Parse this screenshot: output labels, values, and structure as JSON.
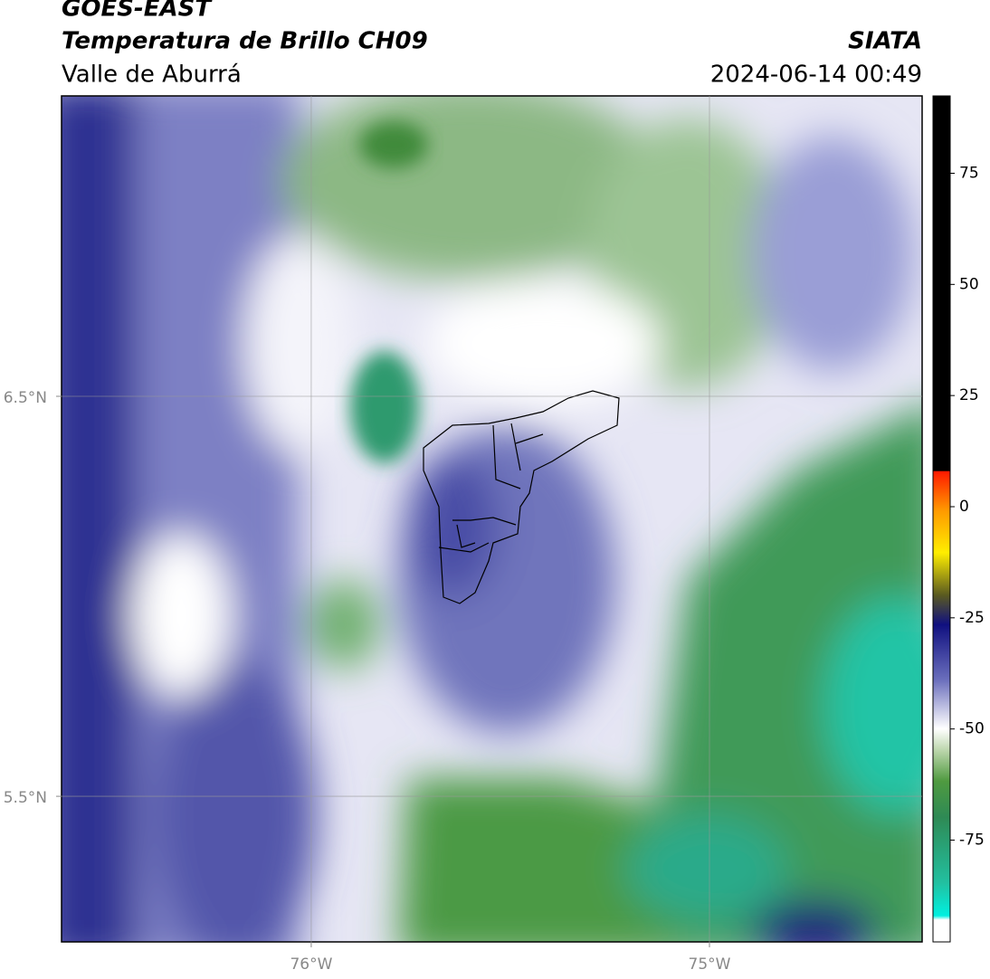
{
  "header": {
    "title": "GOES-EAST",
    "subtitle": "Temperatura de Brillo CH09",
    "region": "Valle de Aburrá",
    "source": "SIATA",
    "datetime": "2024-06-14 00:49"
  },
  "chart_data": {
    "type": "map",
    "xlim": [
      -76.627,
      -74.466
    ],
    "ylim": [
      5.136,
      7.251
    ],
    "xticks": [
      {
        "value": -76,
        "label": "76°W"
      },
      {
        "value": -75,
        "label": "75°W"
      }
    ],
    "yticks": [
      {
        "value": 6.5,
        "label": "6.5°N"
      },
      {
        "value": 5.5,
        "label": "5.5°N"
      }
    ],
    "grid": true,
    "colorbar": {
      "lim": [
        -97.9,
        92.4
      ],
      "ticks": [
        75,
        50,
        25,
        0,
        -25,
        -50,
        -75
      ]
    }
  }
}
